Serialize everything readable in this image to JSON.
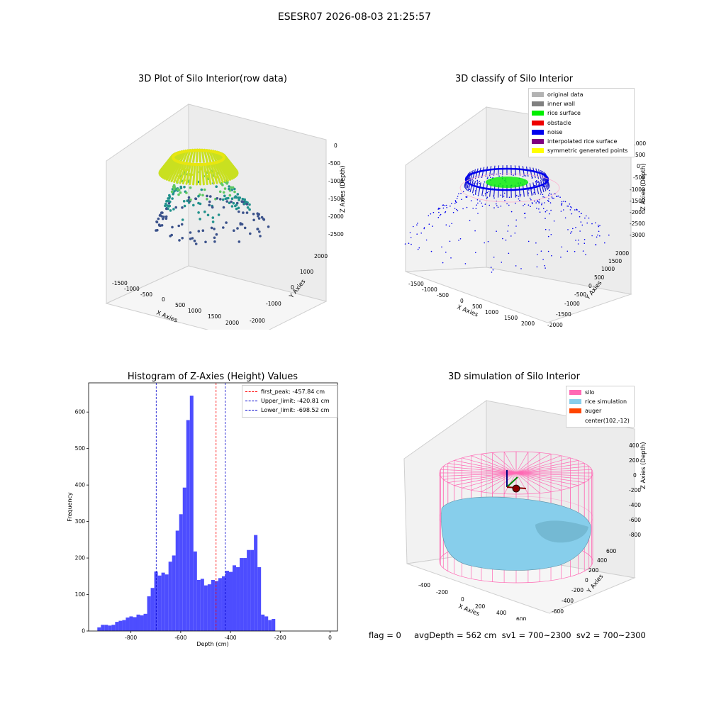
{
  "suptitle": "ESESR07 2026-08-03 21:25:57",
  "panels": {
    "raw": {
      "title": "3D Plot of Silo Interior(row data)",
      "xlabel": "X Axies",
      "ylabel": "Y Axies",
      "zlabel": "Z Axies (Depth)",
      "xticks": [
        "-1500",
        "-1000",
        "-500",
        "0",
        "500",
        "1000",
        "1500",
        "2000"
      ],
      "yticks": [
        "-2000",
        "-1000",
        "0",
        "1000",
        "2000"
      ],
      "zticks": [
        "0",
        "-500",
        "-1000",
        "-1500",
        "-2000",
        "-2500"
      ]
    },
    "classify": {
      "title": "3D classify of Silo Interior",
      "xlabel": "X Axies",
      "ylabel": "Y Axies",
      "zlabel": "Z Axies (Depth)",
      "xticks": [
        "-1500",
        "-1000",
        "-500",
        "0",
        "500",
        "1000",
        "1500",
        "2000"
      ],
      "yticks": [
        "-2000",
        "-1500",
        "-1000",
        "-500",
        "0",
        "500",
        "1000",
        "1500",
        "2000"
      ],
      "zticks": [
        "1000",
        "500",
        "0",
        "-500",
        "-1000",
        "-1500",
        "-2000",
        "-2500",
        "-3000"
      ],
      "legend": [
        {
          "label": "original data",
          "color": "#b3b3b3"
        },
        {
          "label": "inner wall",
          "color": "#808080"
        },
        {
          "label": "rice surface",
          "color": "#00ee00"
        },
        {
          "label": "obstacle",
          "color": "#ee0000"
        },
        {
          "label": "noise",
          "color": "#0000ee"
        },
        {
          "label": "interpolated rice surface",
          "color": "#800080"
        },
        {
          "label": "symmetric generated points",
          "color": "#ffff00"
        }
      ]
    },
    "simulation": {
      "title": "3D simulation of Silo Interior",
      "xlabel": "X Axies",
      "ylabel": "Y Axies",
      "zlabel": "Z Axies (Depth)",
      "xticks": [
        "-400",
        "-200",
        "0",
        "200",
        "400",
        "600"
      ],
      "yticks": [
        "-600",
        "-400",
        "-200",
        "0",
        "200",
        "400",
        "600"
      ],
      "zticks": [
        "400",
        "200",
        "0",
        "-200",
        "-400",
        "-600",
        "-800"
      ],
      "legend": [
        {
          "label": "silo",
          "color": "#ff69b4"
        },
        {
          "label": "rice simulation",
          "color": "#87ceeb"
        },
        {
          "label": "auger",
          "color": "#ff4500"
        },
        {
          "label": "center(102,-12)",
          "color": ""
        }
      ]
    }
  },
  "chart_data": {
    "type": "bar",
    "title": "Histogram of Z-Axies (Height) Values",
    "xlabel": "Depth (cm)",
    "ylabel": "Frequency",
    "xlim": [
      -970,
      30
    ],
    "ylim": [
      0,
      680
    ],
    "xticks": [
      -800,
      -600,
      -400,
      -200,
      0
    ],
    "yticks": [
      0,
      100,
      200,
      300,
      400,
      500,
      600
    ],
    "bin_start": -935,
    "bin_width": 14.3,
    "values": [
      10,
      17,
      17,
      15,
      17,
      25,
      28,
      30,
      37,
      40,
      38,
      45,
      43,
      47,
      95,
      118,
      163,
      152,
      160,
      155,
      190,
      207,
      275,
      320,
      393,
      578,
      645,
      218,
      140,
      143,
      125,
      128,
      140,
      137,
      145,
      150,
      165,
      162,
      180,
      175,
      200,
      200,
      222,
      222,
      263,
      175,
      45,
      40,
      30,
      33
    ],
    "vlines": [
      {
        "label": "first_peak: -457.84 cm",
        "x": -457.84,
        "color": "#ff0000"
      },
      {
        "label": "Upper_limit: -420.81 cm",
        "x": -420.81,
        "color": "#0000cc"
      },
      {
        "label": "Lower_limit: -698.52 cm",
        "x": -698.52,
        "color": "#0000cc"
      }
    ],
    "bar_color": "#4d4dff"
  },
  "footer": "flag = 0     avgDepth = 562 cm  sv1 = 700~2300  sv2 = 700~2300"
}
